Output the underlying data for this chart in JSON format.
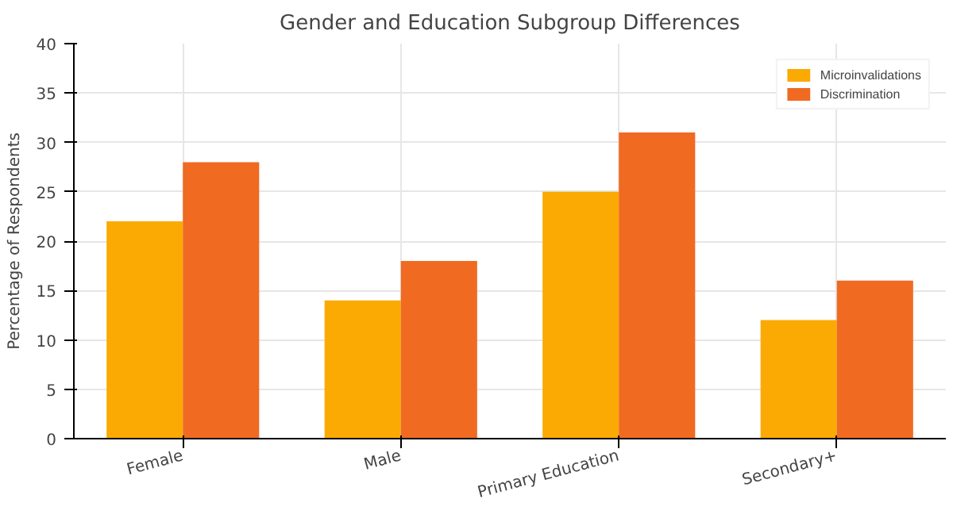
{
  "chart_data": {
    "type": "bar",
    "title": "Gender and Education Subgroup Differences",
    "ylabel": "Percentage of Respondents",
    "categories": [
      "Female",
      "Male",
      "Primary Education",
      "Secondary+"
    ],
    "series": [
      {
        "name": "Microinvalidations",
        "color": "#fbaa04",
        "values": [
          22,
          14,
          25,
          12
        ]
      },
      {
        "name": "Discrimination",
        "color": "#f06a22",
        "values": [
          28,
          18,
          31,
          16
        ]
      }
    ],
    "ylim": [
      0,
      40
    ],
    "yticks": [
      0,
      5,
      10,
      15,
      20,
      25,
      30,
      35,
      40
    ],
    "grid": true,
    "legend": "top right"
  }
}
